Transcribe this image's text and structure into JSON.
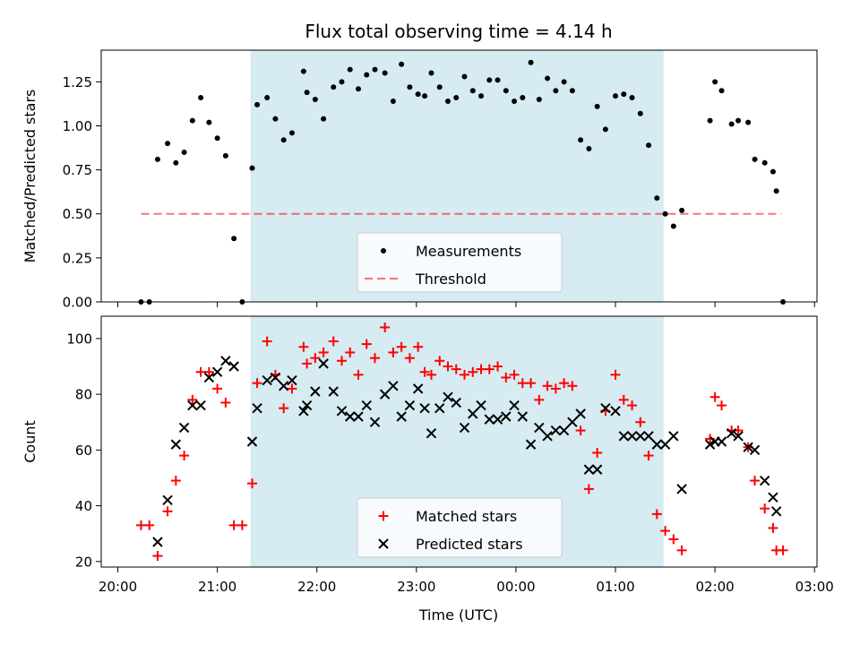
{
  "title": "Flux total observing time = 4.14 h",
  "xlabel": "Time (UTC)",
  "x_ticks": [
    "20:00",
    "21:00",
    "22:00",
    "23:00",
    "00:00",
    "01:00",
    "02:00",
    "03:00"
  ],
  "colors": {
    "shade": "#add8e6",
    "threshold": "#ff0000",
    "measurement": "#000000",
    "matched": "#ff0000",
    "predicted": "#000000"
  },
  "chart_data": [
    {
      "type": "scatter",
      "ylabel": "Matched/Predicted stars",
      "ylim": [
        0,
        1.43
      ],
      "y_ticks": [
        "0.00",
        "0.25",
        "0.50",
        "0.75",
        "1.00",
        "1.25"
      ],
      "xlim": [
        "20:00",
        "03:00"
      ],
      "shaded_interval": [
        "21:20",
        "01:29"
      ],
      "legend_position": "lower-center",
      "legend": [
        "Measurements",
        "Threshold"
      ],
      "threshold": {
        "name": "Threshold",
        "value": 0.5,
        "x_range": [
          "20:14",
          "02:40"
        ]
      },
      "series": [
        {
          "name": "Measurements",
          "points": [
            [
              "20:14",
              0.0
            ],
            [
              "20:19",
              0.0
            ],
            [
              "20:24",
              0.81
            ],
            [
              "20:30",
              0.9
            ],
            [
              "20:35",
              0.79
            ],
            [
              "20:40",
              0.85
            ],
            [
              "20:45",
              1.03
            ],
            [
              "20:50",
              1.16
            ],
            [
              "20:55",
              1.02
            ],
            [
              "21:00",
              0.93
            ],
            [
              "21:05",
              0.83
            ],
            [
              "21:10",
              0.36
            ],
            [
              "21:15",
              0.0
            ],
            [
              "21:21",
              0.76
            ],
            [
              "21:24",
              1.12
            ],
            [
              "21:30",
              1.16
            ],
            [
              "21:35",
              1.04
            ],
            [
              "21:40",
              0.92
            ],
            [
              "21:45",
              0.96
            ],
            [
              "21:52",
              1.31
            ],
            [
              "21:54",
              1.19
            ],
            [
              "21:59",
              1.15
            ],
            [
              "22:04",
              1.04
            ],
            [
              "22:10",
              1.22
            ],
            [
              "22:15",
              1.25
            ],
            [
              "22:20",
              1.32
            ],
            [
              "22:25",
              1.21
            ],
            [
              "22:30",
              1.29
            ],
            [
              "22:35",
              1.32
            ],
            [
              "22:41",
              1.3
            ],
            [
              "22:46",
              1.14
            ],
            [
              "22:51",
              1.35
            ],
            [
              "22:56",
              1.22
            ],
            [
              "23:01",
              1.18
            ],
            [
              "23:05",
              1.17
            ],
            [
              "23:09",
              1.3
            ],
            [
              "23:14",
              1.22
            ],
            [
              "23:19",
              1.14
            ],
            [
              "23:24",
              1.16
            ],
            [
              "23:29",
              1.28
            ],
            [
              "23:34",
              1.2
            ],
            [
              "23:39",
              1.17
            ],
            [
              "23:44",
              1.26
            ],
            [
              "23:49",
              1.26
            ],
            [
              "23:54",
              1.2
            ],
            [
              "23:59",
              1.14
            ],
            [
              "00:04",
              1.16
            ],
            [
              "00:09",
              1.36
            ],
            [
              "00:14",
              1.15
            ],
            [
              "00:19",
              1.27
            ],
            [
              "00:24",
              1.2
            ],
            [
              "00:29",
              1.25
            ],
            [
              "00:34",
              1.2
            ],
            [
              "00:39",
              0.92
            ],
            [
              "00:44",
              0.87
            ],
            [
              "00:49",
              1.11
            ],
            [
              "00:54",
              0.98
            ],
            [
              "01:00",
              1.17
            ],
            [
              "01:05",
              1.18
            ],
            [
              "01:10",
              1.16
            ],
            [
              "01:15",
              1.07
            ],
            [
              "01:20",
              0.89
            ],
            [
              "01:25",
              0.59
            ],
            [
              "01:30",
              0.5
            ],
            [
              "01:35",
              0.43
            ],
            [
              "01:40",
              0.52
            ],
            [
              "01:57",
              1.03
            ],
            [
              "02:00",
              1.25
            ],
            [
              "02:04",
              1.2
            ],
            [
              "02:10",
              1.01
            ],
            [
              "02:14",
              1.03
            ],
            [
              "02:20",
              1.02
            ],
            [
              "02:24",
              0.81
            ],
            [
              "02:30",
              0.79
            ],
            [
              "02:35",
              0.74
            ],
            [
              "02:37",
              0.63
            ],
            [
              "02:41",
              0.0
            ]
          ]
        }
      ]
    },
    {
      "type": "scatter",
      "ylabel": "Count",
      "ylim": [
        18,
        108
      ],
      "y_ticks": [
        "20",
        "40",
        "60",
        "80",
        "100"
      ],
      "xlim": [
        "20:00",
        "03:00"
      ],
      "shaded_interval": [
        "21:20",
        "01:29"
      ],
      "legend_position": "lower-center",
      "legend": [
        "Matched stars",
        "Predicted stars"
      ],
      "series": [
        {
          "name": "Matched stars",
          "marker": "plus",
          "points": [
            [
              "20:14",
              33
            ],
            [
              "20:19",
              33
            ],
            [
              "20:24",
              22
            ],
            [
              "20:30",
              38
            ],
            [
              "20:35",
              49
            ],
            [
              "20:40",
              58
            ],
            [
              "20:45",
              78
            ],
            [
              "20:50",
              88
            ],
            [
              "20:55",
              88
            ],
            [
              "21:00",
              82
            ],
            [
              "21:05",
              77
            ],
            [
              "21:10",
              33
            ],
            [
              "21:15",
              33
            ],
            [
              "21:21",
              48
            ],
            [
              "21:24",
              84
            ],
            [
              "21:30",
              99
            ],
            [
              "21:35",
              87
            ],
            [
              "21:40",
              75
            ],
            [
              "21:45",
              82
            ],
            [
              "21:52",
              97
            ],
            [
              "21:54",
              91
            ],
            [
              "21:59",
              93
            ],
            [
              "22:04",
              95
            ],
            [
              "22:10",
              99
            ],
            [
              "22:15",
              92
            ],
            [
              "22:20",
              95
            ],
            [
              "22:25",
              87
            ],
            [
              "22:30",
              98
            ],
            [
              "22:35",
              93
            ],
            [
              "22:41",
              104
            ],
            [
              "22:46",
              95
            ],
            [
              "22:51",
              97
            ],
            [
              "22:56",
              93
            ],
            [
              "23:01",
              97
            ],
            [
              "23:05",
              88
            ],
            [
              "23:09",
              87
            ],
            [
              "23:14",
              92
            ],
            [
              "23:19",
              90
            ],
            [
              "23:24",
              89
            ],
            [
              "23:29",
              87
            ],
            [
              "23:34",
              88
            ],
            [
              "23:39",
              89
            ],
            [
              "23:44",
              89
            ],
            [
              "23:49",
              90
            ],
            [
              "23:54",
              86
            ],
            [
              "23:59",
              87
            ],
            [
              "00:04",
              84
            ],
            [
              "00:09",
              84
            ],
            [
              "00:14",
              78
            ],
            [
              "00:19",
              83
            ],
            [
              "00:24",
              82
            ],
            [
              "00:29",
              84
            ],
            [
              "00:34",
              83
            ],
            [
              "00:39",
              67
            ],
            [
              "00:44",
              46
            ],
            [
              "00:49",
              59
            ],
            [
              "00:54",
              74
            ],
            [
              "01:00",
              87
            ],
            [
              "01:05",
              78
            ],
            [
              "01:10",
              76
            ],
            [
              "01:15",
              70
            ],
            [
              "01:20",
              58
            ],
            [
              "01:25",
              37
            ],
            [
              "01:30",
              31
            ],
            [
              "01:35",
              28
            ],
            [
              "01:40",
              24
            ],
            [
              "01:57",
              64
            ],
            [
              "02:00",
              79
            ],
            [
              "02:04",
              76
            ],
            [
              "02:10",
              67
            ],
            [
              "02:14",
              67
            ],
            [
              "02:20",
              61
            ],
            [
              "02:24",
              49
            ],
            [
              "02:30",
              39
            ],
            [
              "02:35",
              32
            ],
            [
              "02:37",
              24
            ],
            [
              "02:41",
              24
            ]
          ]
        },
        {
          "name": "Predicted stars",
          "marker": "x",
          "points": [
            [
              "20:24",
              27
            ],
            [
              "20:30",
              42
            ],
            [
              "20:35",
              62
            ],
            [
              "20:40",
              68
            ],
            [
              "20:45",
              76
            ],
            [
              "20:50",
              76
            ],
            [
              "20:55",
              86
            ],
            [
              "21:00",
              88
            ],
            [
              "21:05",
              92
            ],
            [
              "21:10",
              90
            ],
            [
              "21:21",
              63
            ],
            [
              "21:24",
              75
            ],
            [
              "21:30",
              85
            ],
            [
              "21:35",
              86
            ],
            [
              "21:40",
              83
            ],
            [
              "21:45",
              85
            ],
            [
              "21:52",
              74
            ],
            [
              "21:54",
              76
            ],
            [
              "21:59",
              81
            ],
            [
              "22:04",
              91
            ],
            [
              "22:10",
              81
            ],
            [
              "22:15",
              74
            ],
            [
              "22:20",
              72
            ],
            [
              "22:25",
              72
            ],
            [
              "22:30",
              76
            ],
            [
              "22:35",
              70
            ],
            [
              "22:41",
              80
            ],
            [
              "22:46",
              83
            ],
            [
              "22:51",
              72
            ],
            [
              "22:56",
              76
            ],
            [
              "23:01",
              82
            ],
            [
              "23:05",
              75
            ],
            [
              "23:09",
              66
            ],
            [
              "23:14",
              75
            ],
            [
              "23:19",
              79
            ],
            [
              "23:24",
              77
            ],
            [
              "23:29",
              68
            ],
            [
              "23:34",
              73
            ],
            [
              "23:39",
              76
            ],
            [
              "23:44",
              71
            ],
            [
              "23:49",
              71
            ],
            [
              "23:54",
              72
            ],
            [
              "23:59",
              76
            ],
            [
              "00:04",
              72
            ],
            [
              "00:09",
              62
            ],
            [
              "00:14",
              68
            ],
            [
              "00:19",
              65
            ],
            [
              "00:24",
              67
            ],
            [
              "00:29",
              67
            ],
            [
              "00:34",
              70
            ],
            [
              "00:39",
              73
            ],
            [
              "00:44",
              53
            ],
            [
              "00:49",
              53
            ],
            [
              "00:54",
              75
            ],
            [
              "01:00",
              74
            ],
            [
              "01:05",
              65
            ],
            [
              "01:10",
              65
            ],
            [
              "01:15",
              65
            ],
            [
              "01:20",
              65
            ],
            [
              "01:25",
              62
            ],
            [
              "01:30",
              62
            ],
            [
              "01:35",
              65
            ],
            [
              "01:40",
              46
            ],
            [
              "01:57",
              62
            ],
            [
              "02:00",
              63
            ],
            [
              "02:04",
              63
            ],
            [
              "02:10",
              66
            ],
            [
              "02:14",
              65
            ],
            [
              "02:20",
              61
            ],
            [
              "02:24",
              60
            ],
            [
              "02:30",
              49
            ],
            [
              "02:35",
              43
            ],
            [
              "02:37",
              38
            ]
          ]
        }
      ]
    }
  ]
}
